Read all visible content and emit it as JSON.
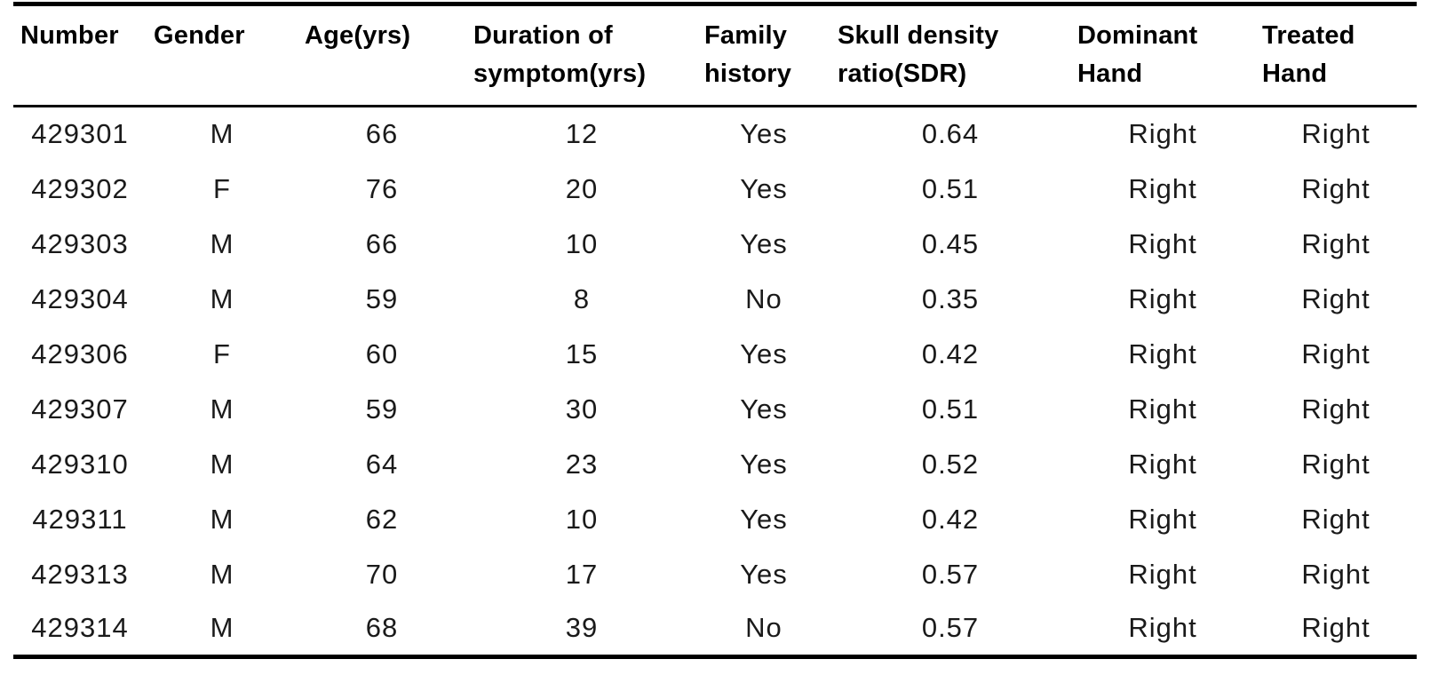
{
  "colors": {
    "background": "#ffffff",
    "header_text": "#000000",
    "data_text": "#1a1a1a",
    "rule": "#000000"
  },
  "table": {
    "columns": [
      "Number",
      "Gender",
      "Age(yrs)",
      "Duration of\nsymptom(yrs)",
      "Family\nhistory",
      "Skull density\nratio(SDR)",
      "Dominant\nHand",
      "Treated\nHand"
    ],
    "rows": [
      [
        "429301",
        "M",
        "66",
        "12",
        "Yes",
        "0.64",
        "Right",
        "Right"
      ],
      [
        "429302",
        "F",
        "76",
        "20",
        "Yes",
        "0.51",
        "Right",
        "Right"
      ],
      [
        "429303",
        "M",
        "66",
        "10",
        "Yes",
        "0.45",
        "Right",
        "Right"
      ],
      [
        "429304",
        "M",
        "59",
        "8",
        "No",
        "0.35",
        "Right",
        "Right"
      ],
      [
        "429306",
        "F",
        "60",
        "15",
        "Yes",
        "0.42",
        "Right",
        "Right"
      ],
      [
        "429307",
        "M",
        "59",
        "30",
        "Yes",
        "0.51",
        "Right",
        "Right"
      ],
      [
        "429310",
        "M",
        "64",
        "23",
        "Yes",
        "0.52",
        "Right",
        "Right"
      ],
      [
        "429311",
        "M",
        "62",
        "10",
        "Yes",
        "0.42",
        "Right",
        "Right"
      ],
      [
        "429313",
        "M",
        "70",
        "17",
        "Yes",
        "0.57",
        "Right",
        "Right"
      ],
      [
        "429314",
        "M",
        "68",
        "39",
        "No",
        "0.57",
        "Right",
        "Right"
      ]
    ]
  }
}
